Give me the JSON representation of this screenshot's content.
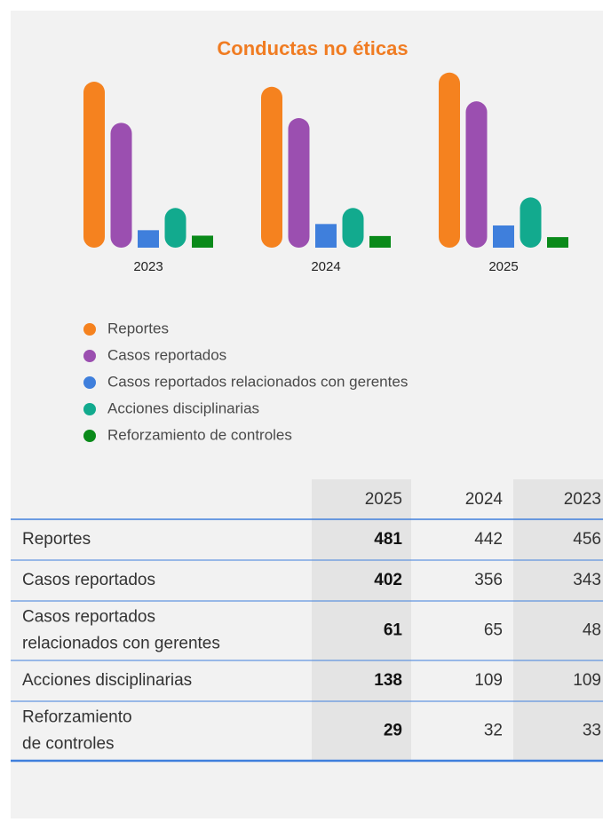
{
  "chart_data": {
    "type": "bar",
    "title": "Conductas no éticas",
    "categories": [
      "2023",
      "2024",
      "2025"
    ],
    "ylim": [
      0,
      500
    ],
    "series": [
      {
        "name": "Reportes",
        "color": "#f5821f",
        "values": [
          456,
          442,
          481
        ]
      },
      {
        "name": "Casos reportados",
        "color": "#9b4fb0",
        "values": [
          343,
          356,
          402
        ]
      },
      {
        "name": "Casos reportados relacionados con gerentes",
        "color": "#3f7fdc",
        "values": [
          48,
          65,
          61
        ]
      },
      {
        "name": "Acciones disciplinarias",
        "color": "#12aa8e",
        "values": [
          109,
          109,
          138
        ]
      },
      {
        "name": "Reforzamiento de controles",
        "color": "#0a8a1a",
        "values": [
          33,
          32,
          29
        ]
      }
    ]
  },
  "table": {
    "columns": [
      "2025",
      "2024",
      "2023"
    ],
    "rows": [
      {
        "label": [
          "Reportes"
        ],
        "values": [
          "481",
          "442",
          "456"
        ]
      },
      {
        "label": [
          "Casos reportados"
        ],
        "values": [
          "402",
          "356",
          "343"
        ]
      },
      {
        "label": [
          "Casos reportados",
          "relacionados con gerentes"
        ],
        "values": [
          "61",
          "65",
          "48"
        ]
      },
      {
        "label": [
          "Acciones disciplinarias"
        ],
        "values": [
          "138",
          "109",
          "109"
        ]
      },
      {
        "label": [
          "Reforzamiento",
          "de controles"
        ],
        "values": [
          "29",
          "32",
          "33"
        ]
      }
    ]
  }
}
